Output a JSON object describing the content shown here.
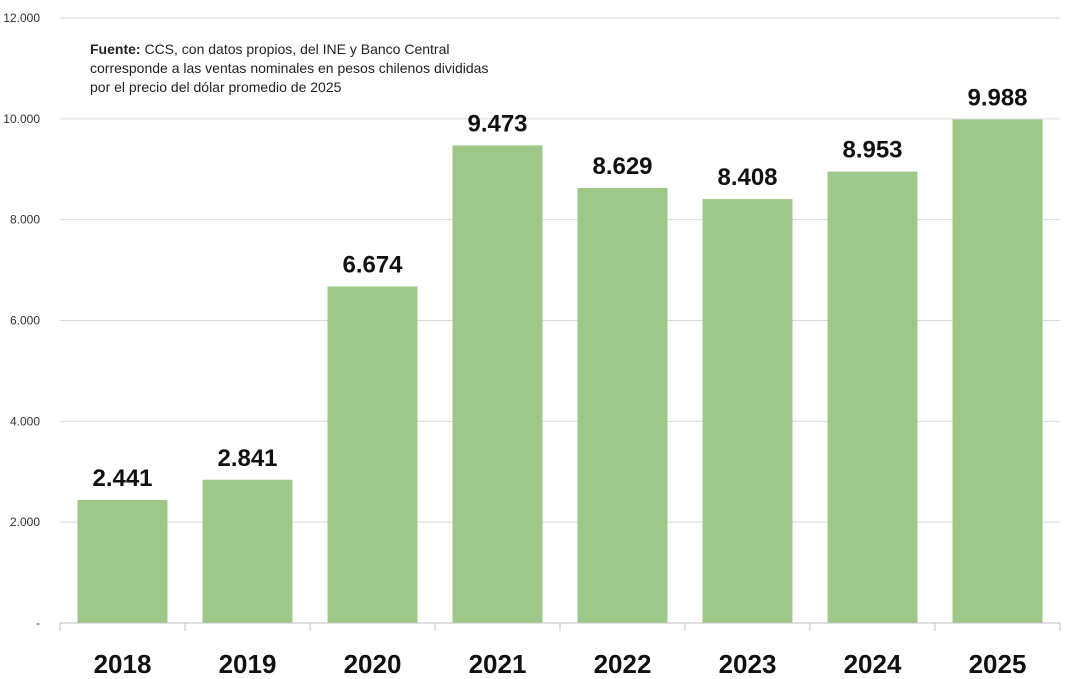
{
  "chart_data": {
    "type": "bar",
    "categories": [
      "2018",
      "2019",
      "2020",
      "2021",
      "2022",
      "2023",
      "2024",
      "2025"
    ],
    "values": [
      2441,
      2841,
      6674,
      9473,
      8629,
      8408,
      8953,
      9988
    ],
    "data_labels": [
      "2.441",
      "2.841",
      "6.674",
      "9.473",
      "8.629",
      "8.408",
      "8.953",
      "9.988"
    ],
    "ylim": [
      0,
      12000
    ],
    "yticks": [
      0,
      2000,
      4000,
      6000,
      8000,
      10000,
      12000
    ],
    "ytick_labels": [
      "-",
      "2.000",
      "4.000",
      "6.000",
      "8.000",
      "10.000",
      "12.000"
    ],
    "grid": true,
    "bar_color": "#9dc887",
    "grid_color": "#d9d9d9"
  },
  "source_note": {
    "label": "Fuente:",
    "text": " CCS, con datos propios, del INE y Banco Central corresponde a las ventas nominales en pesos chilenos divididas por el precio del dólar promedio de 2025"
  }
}
